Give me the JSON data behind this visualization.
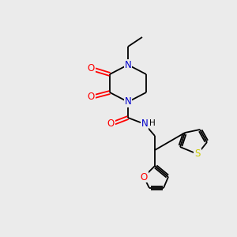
{
  "bg_color": "#ebebeb",
  "atom_colors": {
    "N": "#0000cc",
    "O": "#ff0000",
    "S": "#cccc00",
    "C": "#000000",
    "H": "#555555"
  },
  "font_size_atom": 8.5,
  "fig_width": 3.0,
  "fig_height": 3.0,
  "lw": 1.3
}
